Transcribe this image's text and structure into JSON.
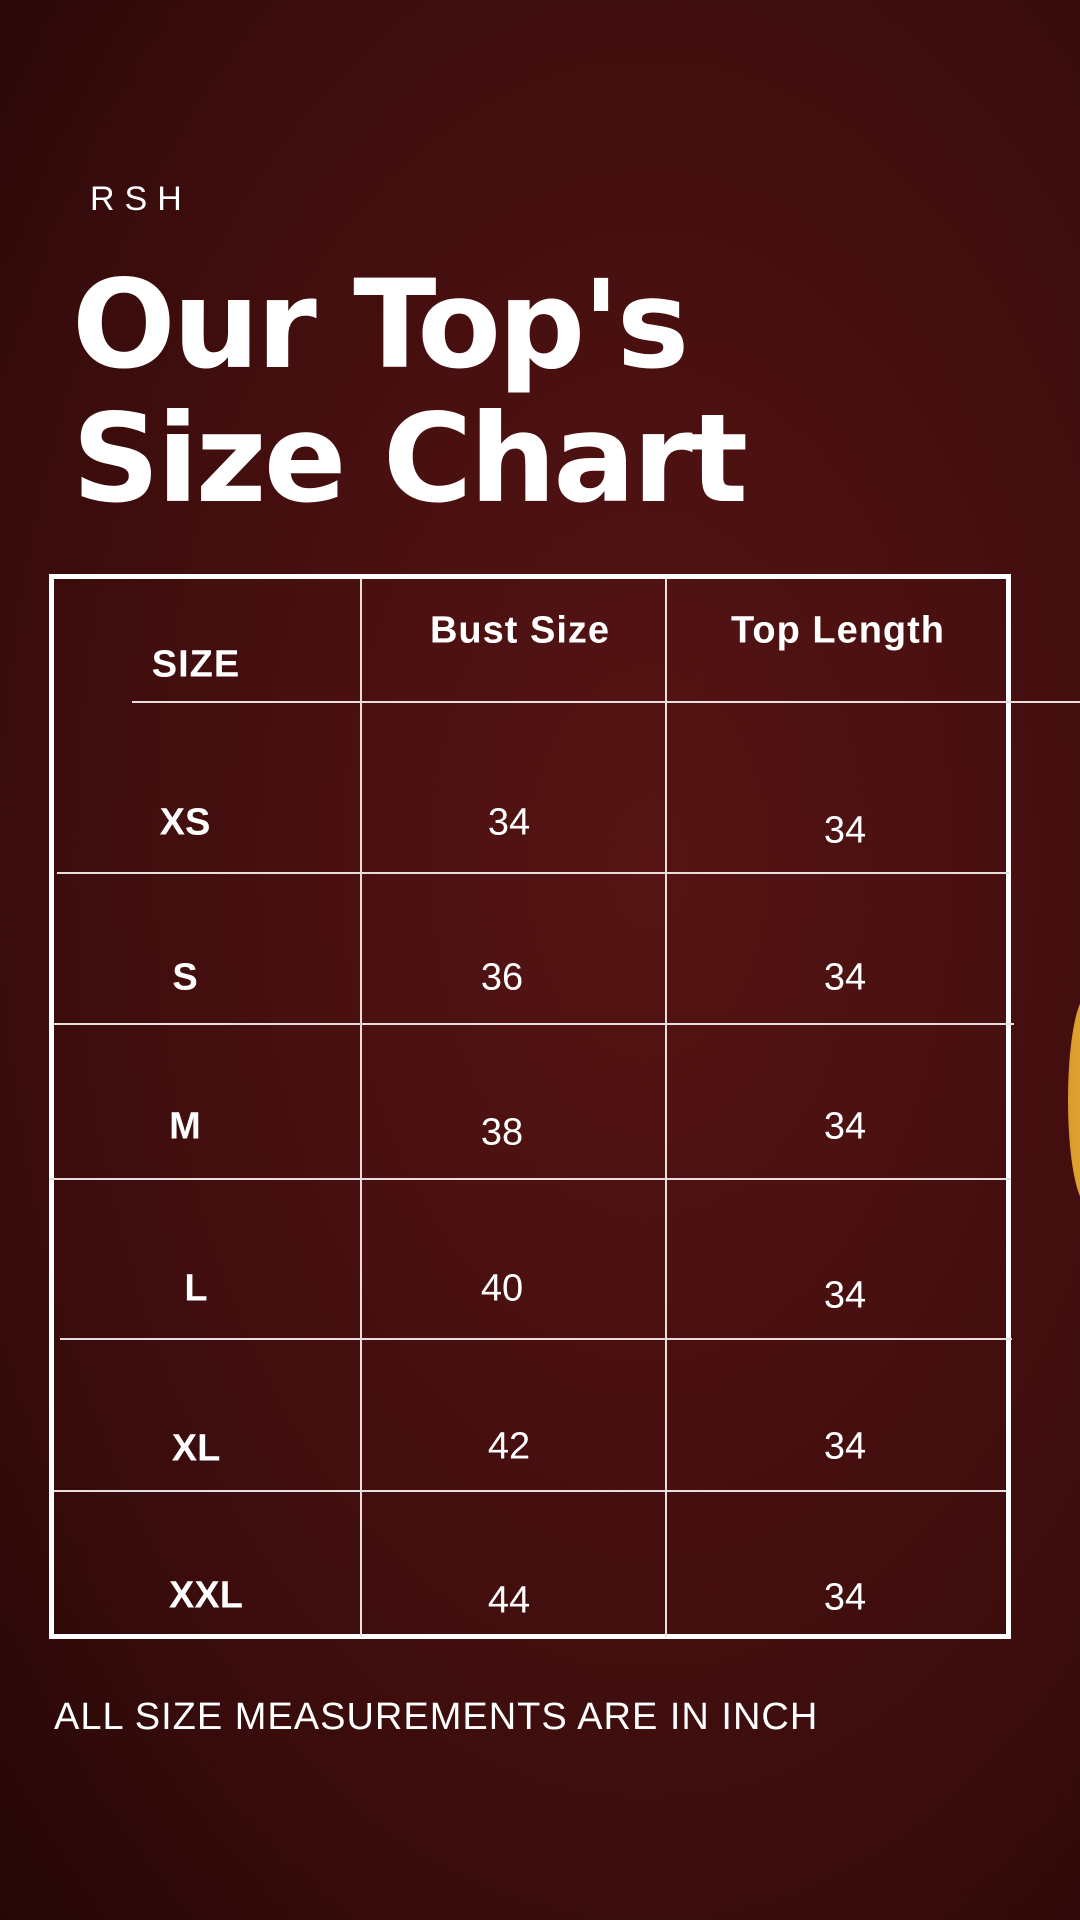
{
  "brand": "RSH",
  "title_line1": "Our Top's",
  "title_line2": "Size Chart",
  "table": {
    "headers": [
      "SIZE",
      "Bust Size",
      "Top Length"
    ],
    "rows": [
      [
        "XS",
        "34",
        "34"
      ],
      [
        "S",
        "36",
        "34"
      ],
      [
        "M",
        "38",
        "34"
      ],
      [
        "L",
        "40",
        "34"
      ],
      [
        "XL",
        "42",
        "34"
      ],
      [
        "XXL",
        "44",
        "34"
      ]
    ]
  },
  "footer": "ALL SIZE MEASUREMENTS ARE IN INCH",
  "colors": {
    "background": "#4a1010",
    "text": "#ffffff",
    "accent": "#f0b540"
  }
}
